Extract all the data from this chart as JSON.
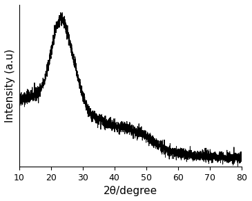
{
  "title": "",
  "xlabel": "2θ/degree",
  "ylabel": "Intensity (a.u)",
  "xlim": [
    10,
    80
  ],
  "ylim": [
    0,
    1.05
  ],
  "x_ticks": [
    10,
    20,
    30,
    40,
    50,
    60,
    70,
    80
  ],
  "line_color": "#000000",
  "line_width": 0.7,
  "background_color": "#ffffff",
  "seed": 42,
  "xlabel_fontsize": 11,
  "ylabel_fontsize": 11,
  "tick_fontsize": 9
}
